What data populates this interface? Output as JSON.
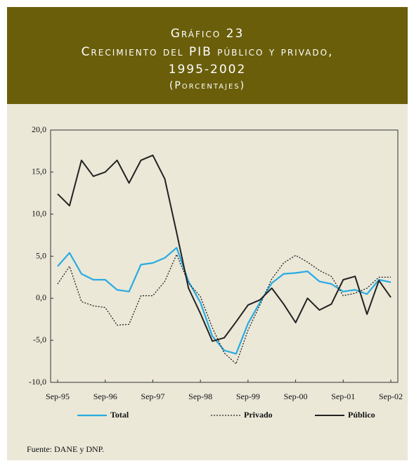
{
  "chart_data": {
    "type": "line",
    "title_lines": [
      "Gráfico 23",
      "Crecimiento del PIB público y privado,",
      "1995-2002",
      "(Porcentajes)"
    ],
    "source": "Fuente: DANE y DNP.",
    "categories": [
      "Sep-95",
      null,
      null,
      null,
      "Sep-96",
      null,
      null,
      null,
      "Sep-97",
      null,
      null,
      null,
      "Sep-98",
      null,
      null,
      null,
      "Sep-99",
      null,
      null,
      null,
      "Sep-00",
      null,
      null,
      null,
      "Sep-01",
      null,
      null,
      null,
      "Sep-02"
    ],
    "ylim": [
      -10,
      20
    ],
    "yticks": [
      {
        "value": -10,
        "label": "-10,0"
      },
      {
        "value": -5,
        "label": "-5,0"
      },
      {
        "value": 0,
        "label": "0,0"
      },
      {
        "value": 5,
        "label": "5,0"
      },
      {
        "value": 10,
        "label": "10,0"
      },
      {
        "value": 15,
        "label": "15,0"
      },
      {
        "value": 20,
        "label": "20,0"
      }
    ],
    "grid": false,
    "series": [
      {
        "name": "Total",
        "color": "#29abe2",
        "dash": "none",
        "width": 2.2,
        "values": [
          3.8,
          5.4,
          2.9,
          2.2,
          2.2,
          1.0,
          0.8,
          4.0,
          4.2,
          4.8,
          6.0,
          2.0,
          -0.5,
          -4.5,
          -6.2,
          -6.6,
          -3.0,
          -0.5,
          1.8,
          2.9,
          3.0,
          3.2,
          2.0,
          1.7,
          0.8,
          1.0,
          0.5,
          2.2,
          1.9
        ]
      },
      {
        "name": "Privado",
        "color": "#222222",
        "dash": "2,2",
        "width": 1.3,
        "values": [
          1.7,
          3.8,
          -0.4,
          -0.9,
          -1.1,
          -3.2,
          -3.1,
          0.3,
          0.3,
          2.0,
          5.2,
          1.8,
          0.2,
          -3.5,
          -6.5,
          -7.8,
          -3.8,
          -0.8,
          2.3,
          4.2,
          5.1,
          4.3,
          3.3,
          2.6,
          0.3,
          0.6,
          1.2,
          2.5,
          2.5
        ]
      },
      {
        "name": "Público",
        "color": "#222222",
        "dash": "none",
        "width": 2,
        "values": [
          12.4,
          11.0,
          16.4,
          14.5,
          15.0,
          16.4,
          13.7,
          16.4,
          17.0,
          14.2,
          7.8,
          1.2,
          -1.8,
          -5.1,
          -4.7,
          -2.8,
          -0.8,
          -0.2,
          1.2,
          -0.7,
          -2.9,
          0.0,
          -1.4,
          -0.7,
          2.2,
          2.6,
          -1.9,
          2.1,
          0.1
        ]
      }
    ]
  }
}
